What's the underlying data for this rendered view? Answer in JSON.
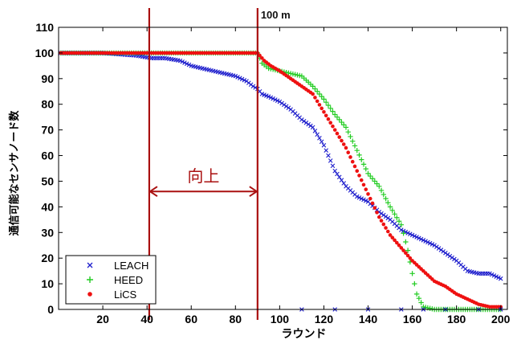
{
  "chart_data": {
    "type": "scatter",
    "title": "",
    "annotation_top": "100 m",
    "annotation_improve": "向上",
    "xlabel": "ラウンド",
    "ylabel": "通信可能なセンサノード数",
    "xlim": [
      0,
      203
    ],
    "ylim": [
      0,
      110
    ],
    "xticks": [
      20,
      40,
      60,
      80,
      100,
      120,
      140,
      160,
      180,
      200
    ],
    "yticks": [
      0,
      10,
      20,
      30,
      40,
      50,
      60,
      70,
      80,
      90,
      100,
      110
    ],
    "grid": false,
    "legend_position": "bottom-left",
    "vertical_lines_x": [
      41,
      90
    ],
    "arrow_span": [
      41,
      90
    ],
    "arrow_y": 46,
    "series": [
      {
        "name": "LEACH",
        "marker": "x",
        "color": "#1c1ccc",
        "x": [
          1,
          20,
          35,
          42,
          48,
          55,
          60,
          65,
          70,
          75,
          80,
          85,
          88,
          90,
          92,
          95,
          100,
          105,
          110,
          115,
          120,
          125,
          130,
          135,
          140,
          145,
          150,
          155,
          160,
          165,
          170,
          175,
          180,
          185,
          190,
          195,
          200
        ],
        "values": [
          100,
          100,
          99,
          98,
          98,
          97,
          95,
          94,
          93,
          92,
          91,
          89,
          87,
          86,
          84,
          83,
          81,
          78,
          74,
          71,
          64,
          54,
          48,
          44,
          42,
          38,
          35,
          31,
          29,
          27,
          25,
          22,
          19,
          15,
          14,
          14,
          12
        ]
      },
      {
        "name": "HEED",
        "marker": "+",
        "color": "#22cc22",
        "x": [
          1,
          20,
          40,
          60,
          80,
          90,
          92,
          95,
          100,
          105,
          110,
          115,
          120,
          125,
          130,
          135,
          140,
          145,
          150,
          155,
          158,
          160,
          162,
          165,
          170,
          180,
          190,
          200
        ],
        "values": [
          100,
          100,
          100,
          100,
          100,
          100,
          96,
          94,
          93,
          92,
          91,
          87,
          82,
          76,
          71,
          62,
          53,
          48,
          40,
          33,
          23,
          14,
          6,
          1,
          0,
          0,
          0,
          0
        ]
      },
      {
        "name": "LiCS",
        "marker": "dot",
        "color": "#ee1111",
        "x": [
          1,
          20,
          40,
          60,
          80,
          90,
          93,
          96,
          100,
          105,
          110,
          115,
          120,
          125,
          130,
          135,
          140,
          145,
          150,
          155,
          160,
          165,
          170,
          175,
          180,
          185,
          190,
          195,
          200
        ],
        "values": [
          100,
          100,
          100,
          100,
          100,
          100,
          97,
          95,
          93,
          90,
          87,
          84,
          77,
          70,
          63,
          54,
          45,
          36,
          29,
          24,
          19,
          15,
          11,
          9,
          6,
          4,
          2,
          1,
          1
        ]
      },
      {
        "name": "",
        "marker": "x",
        "color": "#1c1ccc",
        "x": [
          110,
          125,
          140,
          155,
          165,
          175,
          190,
          200
        ],
        "values": [
          0,
          0,
          0,
          0,
          0,
          0,
          0,
          0
        ]
      }
    ]
  }
}
